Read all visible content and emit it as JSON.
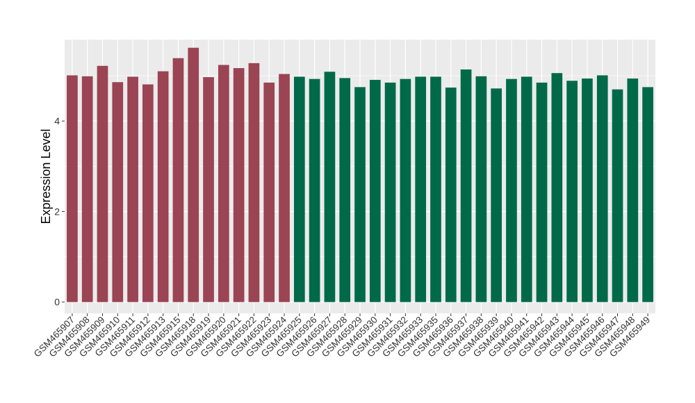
{
  "chart_data": {
    "type": "bar",
    "ylabel": "Expression Level",
    "xlabel": "",
    "ylim": [
      -0.25,
      5.8
    ],
    "yticks": [
      0,
      2,
      4
    ],
    "grid": true,
    "legend": "none",
    "colors": {
      "group1": "#9b4453",
      "group2": "#006a48",
      "panel": "#ebebeb",
      "grid": "#ffffff"
    },
    "categories": [
      "GSM465907",
      "GSM465908",
      "GSM465909",
      "GSM465910",
      "GSM465911",
      "GSM465912",
      "GSM465913",
      "GSM465915",
      "GSM465918",
      "GSM465919",
      "GSM465920",
      "GSM465921",
      "GSM465922",
      "GSM465923",
      "GSM465924",
      "GSM465925",
      "GSM465926",
      "GSM465927",
      "GSM465928",
      "GSM465929",
      "GSM465930",
      "GSM465931",
      "GSM465932",
      "GSM465933",
      "GSM465935",
      "GSM465936",
      "GSM465937",
      "GSM465938",
      "GSM465939",
      "GSM465940",
      "GSM465941",
      "GSM465942",
      "GSM465943",
      "GSM465944",
      "GSM465945",
      "GSM465946",
      "GSM465947",
      "GSM465948",
      "GSM465949"
    ],
    "values": [
      5.01,
      4.99,
      5.22,
      4.86,
      4.98,
      4.81,
      5.1,
      5.39,
      5.62,
      4.97,
      5.24,
      5.17,
      5.28,
      4.85,
      5.04,
      4.98,
      4.93,
      5.09,
      4.95,
      4.75,
      4.91,
      4.85,
      4.93,
      4.98,
      4.98,
      4.74,
      5.14,
      4.99,
      4.72,
      4.93,
      4.98,
      4.85,
      5.06,
      4.89,
      4.94,
      5.01,
      4.7,
      4.94,
      4.75
    ],
    "groups": [
      1,
      1,
      1,
      1,
      1,
      1,
      1,
      1,
      1,
      1,
      1,
      1,
      1,
      1,
      1,
      2,
      2,
      2,
      2,
      2,
      2,
      2,
      2,
      2,
      2,
      2,
      2,
      2,
      2,
      2,
      2,
      2,
      2,
      2,
      2,
      2,
      2,
      2,
      2
    ]
  }
}
